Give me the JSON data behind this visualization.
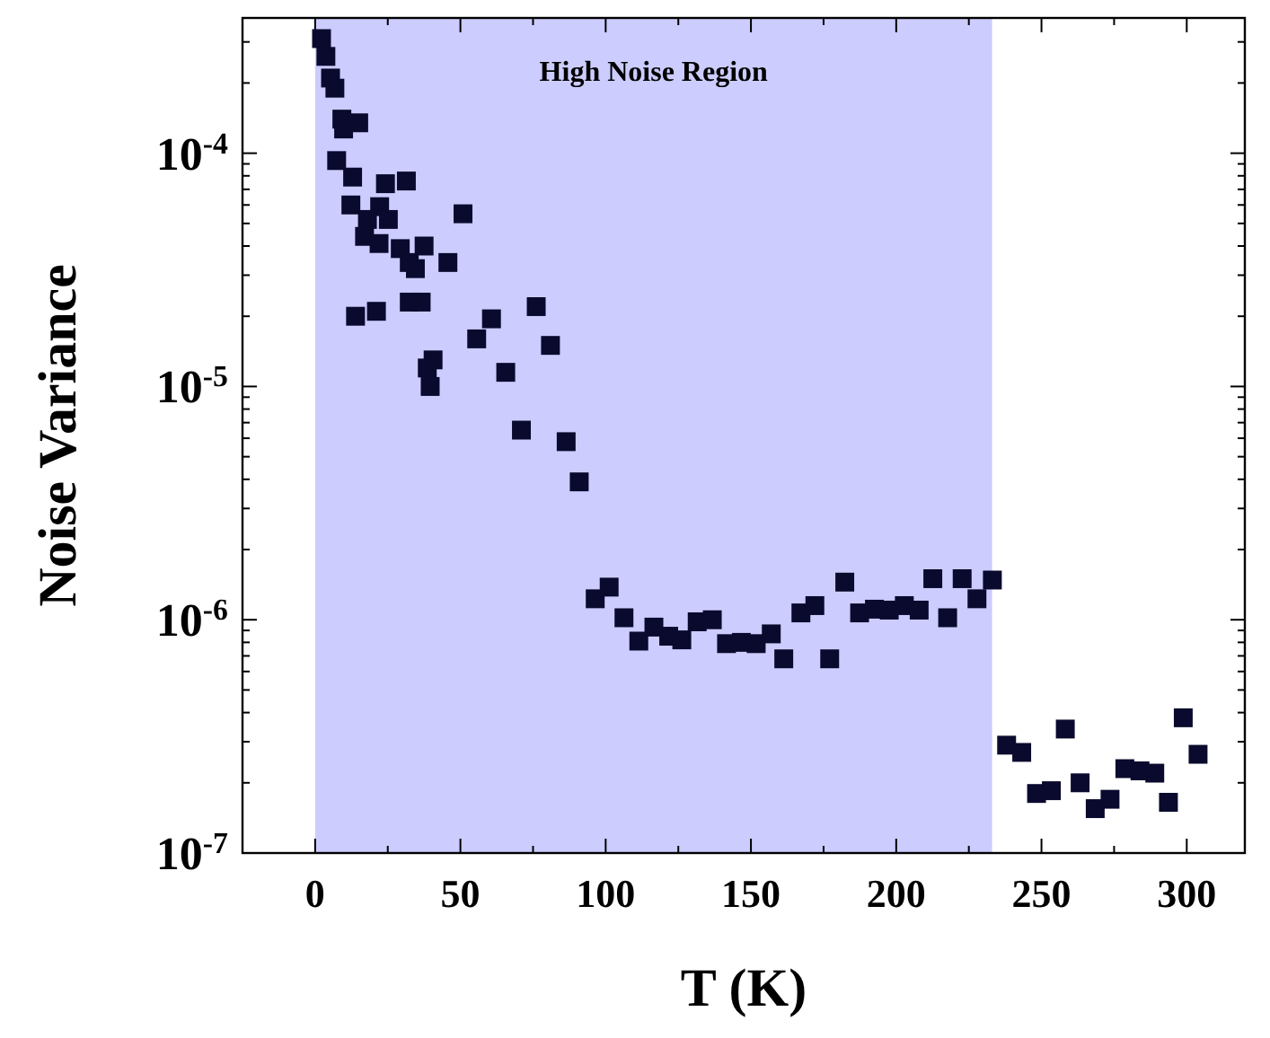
{
  "chart_data": {
    "type": "scatter",
    "xlabel": "T (K)",
    "ylabel": "Noise Variance",
    "log": "y",
    "marker": "square",
    "grid": false,
    "xlim": [
      -25,
      320
    ],
    "xticks": [
      0,
      {
        "value": 25,
        "label": null
      },
      50,
      {
        "value": 75,
        "label": null
      },
      100,
      {
        "value": 125,
        "label": null
      },
      150,
      {
        "value": 175,
        "label": null
      },
      200,
      {
        "value": 225,
        "label": null
      },
      250,
      {
        "value": 275,
        "label": null
      },
      300
    ],
    "ylim": [
      1e-07,
      0.00038
    ],
    "yticks": [
      {
        "value": 1e-07,
        "label": "10$^{-7}$"
      },
      {
        "value": 2e-07,
        "label": null
      },
      {
        "value": 3e-07,
        "label": null
      },
      {
        "value": 4e-07,
        "label": null
      },
      {
        "value": 5e-07,
        "label": null
      },
      {
        "value": 6e-07,
        "label": null
      },
      {
        "value": 7e-07,
        "label": null
      },
      {
        "value": 8e-07,
        "label": null
      },
      {
        "value": 9e-07,
        "label": null
      },
      {
        "value": 1e-06,
        "label": "10$^{-6}$"
      },
      {
        "value": 2e-06,
        "label": null
      },
      {
        "value": 3e-06,
        "label": null
      },
      {
        "value": 4e-06,
        "label": null
      },
      {
        "value": 5e-06,
        "label": null
      },
      {
        "value": 6e-06,
        "label": null
      },
      {
        "value": 7e-06,
        "label": null
      },
      {
        "value": 8e-06,
        "label": null
      },
      {
        "value": 9e-06,
        "label": null
      },
      {
        "value": 1e-05,
        "label": "10$^{-5}$"
      },
      {
        "value": 2e-05,
        "label": null
      },
      {
        "value": 3e-05,
        "label": null
      },
      {
        "value": 4e-05,
        "label": null
      },
      {
        "value": 5e-05,
        "label": null
      },
      {
        "value": 6e-05,
        "label": null
      },
      {
        "value": 7e-05,
        "label": null
      },
      {
        "value": 8e-05,
        "label": null
      },
      {
        "value": 9e-05,
        "label": null
      },
      {
        "value": 0.0001,
        "label": "10$^{-4}$"
      },
      {
        "value": 0.0002,
        "label": null
      },
      {
        "value": 0.0003,
        "label": null
      }
    ],
    "bands": [
      {
        "axis": "x",
        "from": 0,
        "to": 233,
        "label": "High Noise Region",
        "color": "#ccccff"
      }
    ],
    "series": [
      {
        "color": "#0a0a2e",
        "x": [
          2.2,
          3.7,
          5.3,
          6.8,
          9.2,
          15,
          9.8,
          7.4,
          12.9,
          24.2,
          31.4,
          12.3,
          22.2,
          18,
          25.2,
          50.9,
          17,
          22,
          29.3,
          37.5,
          32.4,
          45.7,
          34.5,
          13.9,
          21.1,
          32.4,
          36.5,
          76.1,
          60.7,
          55.6,
          81,
          40.6,
          38.6,
          39.6,
          65.6,
          71,
          86.4,
          90.9,
          96.4,
          101.2,
          106.3,
          111.4,
          116.6,
          121.7,
          126.2,
          131.5,
          136.7,
          141.6,
          146.7,
          151.8,
          157,
          161.3,
          167.2,
          172,
          177.1,
          182.3,
          187.4,
          192.5,
          197.6,
          202.8,
          207.9,
          212.6,
          217.7,
          222.7,
          227.8,
          233.1,
          238,
          243.2,
          248.3,
          253.4,
          258.2,
          263.3,
          268.5,
          273.6,
          278.7,
          283.9,
          289,
          293.7,
          298.8,
          303.9
        ],
        "values": [
          0.00031,
          0.00026,
          0.00021,
          0.00019,
          0.00014,
          0.000135,
          0.000127,
          9.3e-05,
          7.9e-05,
          7.4e-05,
          7.6e-05,
          6e-05,
          5.9e-05,
          5.2e-05,
          5.2e-05,
          5.5e-05,
          4.4e-05,
          4.1e-05,
          3.9e-05,
          4e-05,
          3.4e-05,
          3.4e-05,
          3.2e-05,
          2e-05,
          2.1e-05,
          2.3e-05,
          2.3e-05,
          2.2e-05,
          1.95e-05,
          1.6e-05,
          1.5e-05,
          1.3e-05,
          1.2e-05,
          1e-05,
          1.15e-05,
          6.5e-06,
          5.8e-06,
          3.9e-06,
          1.23e-06,
          1.38e-06,
          1.02e-06,
          8.1e-07,
          9.3e-07,
          8.5e-07,
          8.2e-07,
          9.8e-07,
          1e-06,
          7.9e-07,
          8e-07,
          7.9e-07,
          8.7e-07,
          6.8e-07,
          1.07e-06,
          1.15e-06,
          6.8e-07,
          1.45e-06,
          1.07e-06,
          1.11e-06,
          1.1e-06,
          1.15e-06,
          1.1e-06,
          1.5e-06,
          1.02e-06,
          1.5e-06,
          1.23e-06,
          1.48e-06,
          2.9e-07,
          2.7e-07,
          1.8e-07,
          1.85e-07,
          3.4e-07,
          2e-07,
          1.55e-07,
          1.7e-07,
          2.3e-07,
          2.25e-07,
          2.2e-07,
          1.65e-07,
          3.8e-07,
          2.65e-07
        ]
      }
    ]
  }
}
